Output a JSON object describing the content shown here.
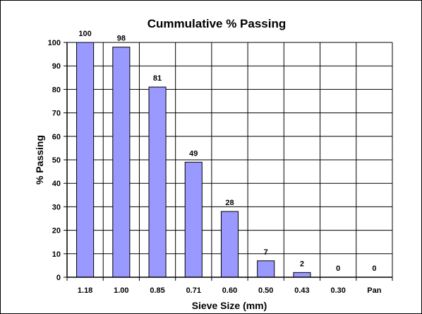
{
  "chart_data": {
    "type": "bar",
    "title": "Cummulative % Passing",
    "xlabel": "Sieve Size (mm)",
    "ylabel": "% Passing",
    "categories": [
      "1.18",
      "1.00",
      "0.85",
      "0.71",
      "0.60",
      "0.50",
      "0.43",
      "0.30",
      "Pan"
    ],
    "values": [
      100,
      98,
      81,
      49,
      28,
      7,
      2,
      0,
      0
    ],
    "ylim": [
      0,
      100
    ],
    "yticks": [
      0,
      10,
      20,
      30,
      40,
      50,
      60,
      70,
      80,
      90,
      100
    ],
    "grid": true,
    "legend": "none",
    "colors": {
      "bar_fill": "#9999ff",
      "bar_stroke": "#000000",
      "grid": "#000000"
    }
  }
}
